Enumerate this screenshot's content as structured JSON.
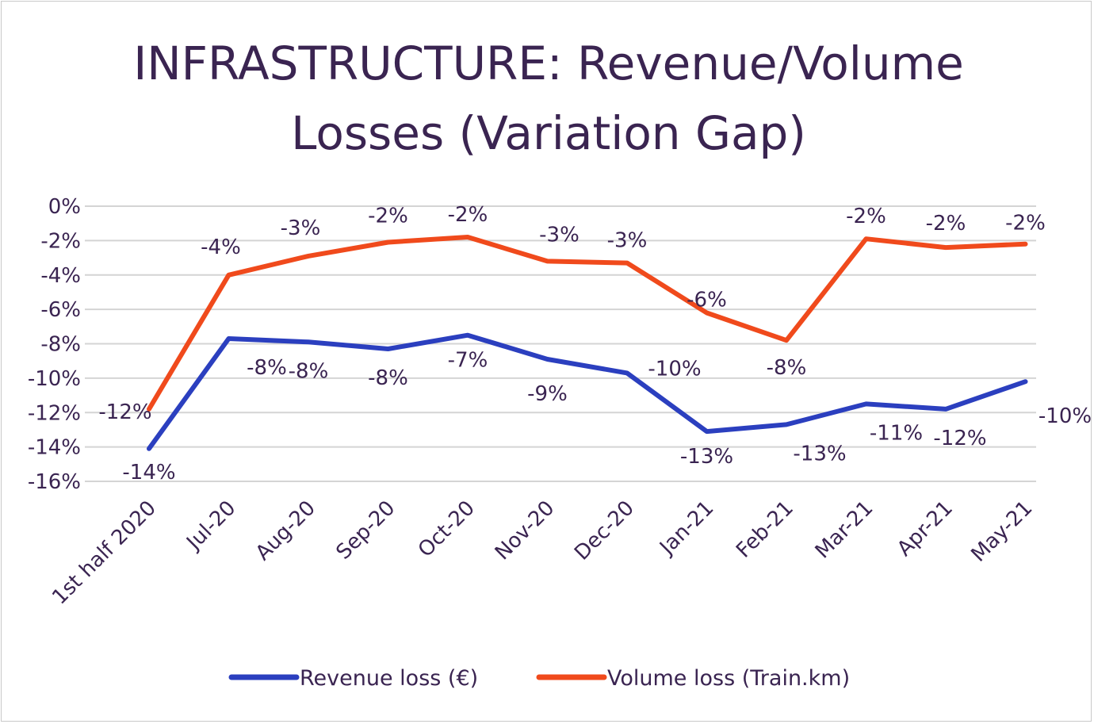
{
  "chart_data": {
    "type": "line",
    "title_lines": [
      "INFRASTRUCTURE: Revenue/Volume",
      "Losses (Variation Gap)"
    ],
    "categories": [
      "1st half 2020",
      "Jul-20",
      "Aug-20",
      "Sep-20",
      "Oct-20",
      "Nov-20",
      "Dec-20",
      "Jan-21",
      "Feb-21",
      "Mar-21",
      "Apr-21",
      "May-21"
    ],
    "ylim": [
      -16,
      0
    ],
    "yticks": [
      0,
      -2,
      -4,
      -6,
      -8,
      -10,
      -12,
      -14,
      -16
    ],
    "ytick_labels": [
      "0%",
      "-2%",
      "-4%",
      "-6%",
      "-8%",
      "-10%",
      "-12%",
      "-14%",
      "-16%"
    ],
    "grid": true,
    "legend_position": "bottom",
    "series": [
      {
        "name": "Revenue loss (€)",
        "color": "#2b3fbf",
        "values": [
          -14.1,
          -7.7,
          -7.9,
          -8.3,
          -7.5,
          -8.9,
          -9.7,
          -13.1,
          -12.7,
          -11.5,
          -11.8,
          -10.2
        ],
        "labels": [
          "-14%",
          "-8%",
          "-8%",
          "-8%",
          "-7%",
          "-9%",
          "-10%",
          "-13%",
          "-13%",
          "-11%",
          "-12%",
          "-10%"
        ]
      },
      {
        "name": "Volume loss (Train.km)",
        "color": "#f04a1c",
        "values": [
          -11.8,
          -4.0,
          -2.9,
          -2.1,
          -1.8,
          -3.2,
          -3.3,
          -6.2,
          -7.8,
          -1.9,
          -2.4,
          -2.2
        ],
        "labels": [
          "-12%",
          "-4%",
          "-3%",
          "-2%",
          "-2%",
          "-3%",
          "-3%",
          "-6%",
          "-8%",
          "-2%",
          "-2%",
          "-2%"
        ]
      }
    ]
  }
}
